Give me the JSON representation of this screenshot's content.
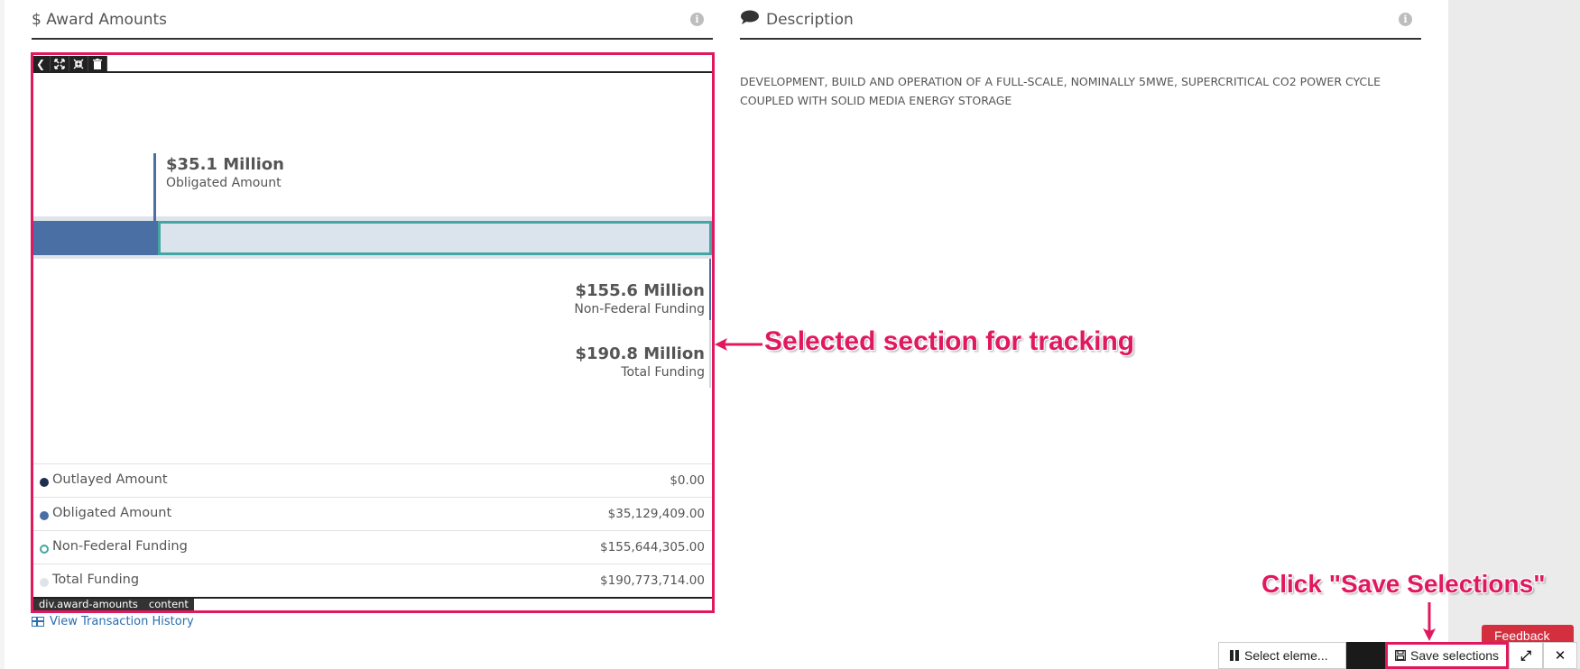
{
  "award_amounts": {
    "title": "$ Award Amounts",
    "info_glyph": "i",
    "toolbar_icons": [
      "chevron-left-icon",
      "expand-icon",
      "collapse-icon",
      "trash-icon"
    ],
    "chart": {
      "obligated": {
        "amount": "$35.1 Million",
        "label": "Obligated Amount"
      },
      "non_federal": {
        "amount": "$155.6 Million",
        "label": "Non-Federal Funding"
      },
      "total": {
        "amount": "$190.8 Million",
        "label": "Total Funding"
      }
    },
    "legend": [
      {
        "name": "Outlayed Amount",
        "value": "$0.00",
        "color": "#1c2f4e",
        "style": "filled"
      },
      {
        "name": "Obligated Amount",
        "value": "$35,129,409.00",
        "color": "#4a6fa5",
        "style": "filled"
      },
      {
        "name": "Non-Federal Funding",
        "value": "$155,644,305.00",
        "color": "#44a6a2",
        "style": "ring"
      },
      {
        "name": "Total Funding",
        "value": "$190,773,714.00",
        "color": "#dfe4ea",
        "style": "filled"
      }
    ],
    "selector_tag": [
      "div.award-amounts",
      "content"
    ],
    "view_history": "View Transaction History"
  },
  "description": {
    "title": "Description",
    "info_glyph": "i",
    "text": "DEVELOPMENT, BUILD AND OPERATION OF A FULL-SCALE, NOMINALLY 5MWE, SUPERCRITICAL CO2 POWER CYCLE COUPLED WITH SOLID MEDIA ENERGY STORAGE"
  },
  "annotations": {
    "selected_section": "Selected section for tracking",
    "click_save": "Click \"Save Selections\""
  },
  "bottom_bar": {
    "select_label": "Select eleme...",
    "save_label": "Save selections",
    "expand_glyph": "⤢",
    "close_glyph": "✕"
  },
  "feedback": {
    "label": "Feedback"
  },
  "colors": {
    "highlight": "#e0195f",
    "obligated": "#4a6fa5",
    "non_federal_border": "#44a6a2",
    "link": "#2a6fb0"
  }
}
